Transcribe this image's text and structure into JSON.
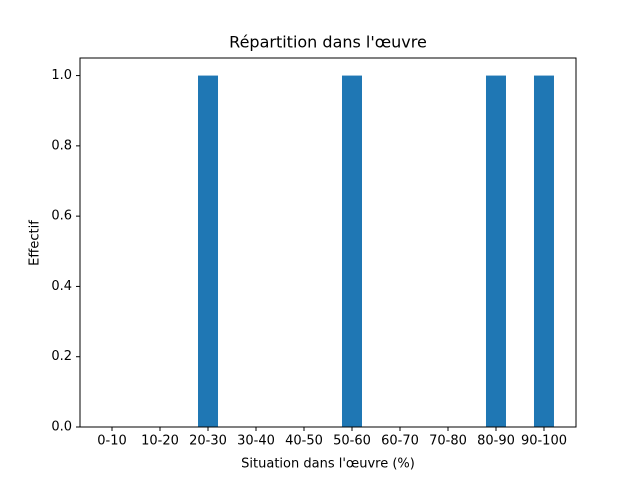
{
  "chart_data": {
    "type": "bar",
    "title": "Répartition dans l'œuvre",
    "x_label": "Situation dans l'œuvre (%)",
    "y_label": "Effectif",
    "categories": [
      "0-10",
      "10-20",
      "20-30",
      "30-40",
      "40-50",
      "50-60",
      "60-70",
      "70-80",
      "80-90",
      "90-100"
    ],
    "values": [
      0,
      0,
      1,
      0,
      0,
      1,
      0,
      0,
      1,
      1
    ],
    "color": "#1f77b4",
    "ylim": [
      0,
      1.05
    ],
    "yticks": [
      {
        "value": 0,
        "label": "0.0"
      },
      0.2,
      0.4,
      0.6,
      0.8,
      {
        "value": 1,
        "label": "1.0"
      }
    ],
    "grid": false
  }
}
